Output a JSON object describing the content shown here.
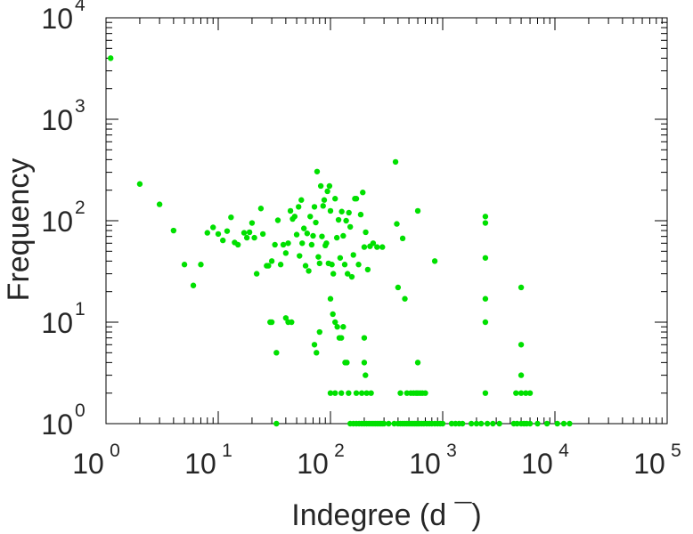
{
  "chart_data": {
    "type": "scatter",
    "xscale": "log",
    "yscale": "log",
    "xlim": [
      1,
      100000
    ],
    "ylim": [
      1,
      10000
    ],
    "xlabel": "Indegree (d ¯)",
    "ylabel": "Frequency",
    "grid": false,
    "marker_color": "#00e000",
    "x_ticks": [
      {
        "base": "10",
        "exp": "0",
        "value": 1
      },
      {
        "base": "10",
        "exp": "1",
        "value": 10
      },
      {
        "base": "10",
        "exp": "2",
        "value": 100
      },
      {
        "base": "10",
        "exp": "3",
        "value": 1000
      },
      {
        "base": "10",
        "exp": "4",
        "value": 10000
      },
      {
        "base": "10",
        "exp": "5",
        "value": 100000
      }
    ],
    "y_ticks": [
      {
        "base": "10",
        "exp": "0",
        "value": 1
      },
      {
        "base": "10",
        "exp": "1",
        "value": 10
      },
      {
        "base": "10",
        "exp": "2",
        "value": 100
      },
      {
        "base": "10",
        "exp": "3",
        "value": 1000
      },
      {
        "base": "10",
        "exp": "4",
        "value": 10000
      }
    ],
    "points": [
      [
        1.1,
        4000
      ],
      [
        2,
        230
      ],
      [
        3,
        145
      ],
      [
        4,
        80
      ],
      [
        5,
        37
      ],
      [
        6,
        23
      ],
      [
        7,
        37
      ],
      [
        8,
        76
      ],
      [
        9,
        86
      ],
      [
        10,
        74
      ],
      [
        11,
        64
      ],
      [
        12,
        79
      ],
      [
        13,
        108
      ],
      [
        14,
        61
      ],
      [
        15,
        58
      ],
      [
        17,
        76
      ],
      [
        18,
        68
      ],
      [
        19,
        77
      ],
      [
        20,
        95
      ],
      [
        21,
        68
      ],
      [
        22,
        30
      ],
      [
        24,
        132
      ],
      [
        25,
        74
      ],
      [
        27,
        36
      ],
      [
        28,
        36
      ],
      [
        29,
        10
      ],
      [
        30,
        40
      ],
      [
        32,
        58
      ],
      [
        34,
        101
      ],
      [
        36,
        37
      ],
      [
        38,
        58
      ],
      [
        40,
        48
      ],
      [
        42,
        60
      ],
      [
        44,
        125
      ],
      [
        46,
        104
      ],
      [
        48,
        110
      ],
      [
        50,
        73
      ],
      [
        52,
        137
      ],
      [
        53,
        45
      ],
      [
        55,
        160
      ],
      [
        56,
        60
      ],
      [
        58,
        84
      ],
      [
        60,
        36
      ],
      [
        62,
        75
      ],
      [
        64,
        32
      ],
      [
        66,
        110
      ],
      [
        68,
        58
      ],
      [
        70,
        71
      ],
      [
        72,
        137
      ],
      [
        74,
        96
      ],
      [
        76,
        305
      ],
      [
        78,
        44
      ],
      [
        80,
        38
      ],
      [
        82,
        220
      ],
      [
        84,
        70
      ],
      [
        86,
        140
      ],
      [
        88,
        160
      ],
      [
        90,
        57
      ],
      [
        92,
        60
      ],
      [
        94,
        195
      ],
      [
        96,
        38
      ],
      [
        98,
        220
      ],
      [
        100,
        125
      ],
      [
        103,
        37
      ],
      [
        106,
        30
      ],
      [
        110,
        165
      ],
      [
        114,
        68
      ],
      [
        118,
        102
      ],
      [
        122,
        43
      ],
      [
        126,
        123
      ],
      [
        130,
        71
      ],
      [
        134,
        37
      ],
      [
        138,
        100
      ],
      [
        142,
        30
      ],
      [
        146,
        120
      ],
      [
        150,
        87
      ],
      [
        155,
        28
      ],
      [
        160,
        46
      ],
      [
        165,
        165
      ],
      [
        170,
        165
      ],
      [
        178,
        37
      ],
      [
        186,
        115
      ],
      [
        194,
        190
      ],
      [
        200,
        55
      ],
      [
        206,
        77
      ],
      [
        215,
        33
      ],
      [
        225,
        56
      ],
      [
        240,
        60
      ],
      [
        260,
        55
      ],
      [
        290,
        55
      ],
      [
        380,
        380
      ],
      [
        390,
        93
      ],
      [
        400,
        22
      ],
      [
        440,
        67
      ],
      [
        460,
        17
      ],
      [
        600,
        125
      ],
      [
        850,
        40
      ],
      [
        100,
        17
      ],
      [
        105,
        12
      ],
      [
        110,
        10
      ],
      [
        115,
        9
      ],
      [
        120,
        7
      ],
      [
        125,
        7
      ],
      [
        130,
        9
      ],
      [
        135,
        4
      ],
      [
        40,
        11
      ],
      [
        42,
        10
      ],
      [
        45,
        10
      ],
      [
        30,
        10
      ],
      [
        33,
        5
      ],
      [
        72,
        6
      ],
      [
        75,
        5
      ],
      [
        80,
        8
      ],
      [
        140,
        4
      ],
      [
        200,
        7
      ],
      [
        200,
        4
      ],
      [
        205,
        3
      ],
      [
        600,
        4
      ],
      [
        2400,
        110
      ],
      [
        2400,
        95
      ],
      [
        2400,
        43
      ],
      [
        2400,
        17
      ],
      [
        2400,
        10
      ],
      [
        5000,
        22
      ],
      [
        5000,
        6
      ],
      [
        5000,
        3
      ],
      [
        100,
        2
      ],
      [
        110,
        2
      ],
      [
        125,
        2
      ],
      [
        145,
        2
      ],
      [
        170,
        2
      ],
      [
        190,
        2
      ],
      [
        210,
        2
      ],
      [
        230,
        2
      ],
      [
        420,
        2
      ],
      [
        480,
        2
      ],
      [
        520,
        2
      ],
      [
        550,
        2
      ],
      [
        580,
        2
      ],
      [
        600,
        2
      ],
      [
        630,
        2
      ],
      [
        660,
        2
      ],
      [
        700,
        2
      ],
      [
        2400,
        2
      ],
      [
        4500,
        2
      ],
      [
        5000,
        2
      ],
      [
        5500,
        2
      ],
      [
        6000,
        2
      ],
      [
        33,
        1
      ],
      [
        150,
        1
      ],
      [
        160,
        1
      ],
      [
        170,
        1
      ],
      [
        180,
        1
      ],
      [
        190,
        1
      ],
      [
        200,
        1
      ],
      [
        210,
        1
      ],
      [
        220,
        1
      ],
      [
        230,
        1
      ],
      [
        240,
        1
      ],
      [
        250,
        1
      ],
      [
        260,
        1
      ],
      [
        270,
        1
      ],
      [
        280,
        1
      ],
      [
        290,
        1
      ],
      [
        300,
        1
      ],
      [
        330,
        1
      ],
      [
        370,
        1
      ],
      [
        400,
        1
      ],
      [
        420,
        1
      ],
      [
        440,
        1
      ],
      [
        460,
        1
      ],
      [
        480,
        1
      ],
      [
        500,
        1
      ],
      [
        520,
        1
      ],
      [
        540,
        1
      ],
      [
        560,
        1
      ],
      [
        580,
        1
      ],
      [
        600,
        1
      ],
      [
        620,
        1
      ],
      [
        650,
        1
      ],
      [
        680,
        1
      ],
      [
        720,
        1
      ],
      [
        760,
        1
      ],
      [
        800,
        1
      ],
      [
        850,
        1
      ],
      [
        900,
        1
      ],
      [
        950,
        1
      ],
      [
        1000,
        1
      ],
      [
        1200,
        1
      ],
      [
        1300,
        1
      ],
      [
        1400,
        1
      ],
      [
        1500,
        1
      ],
      [
        1800,
        1
      ],
      [
        2000,
        1
      ],
      [
        2200,
        1
      ],
      [
        2500,
        1
      ],
      [
        2800,
        1
      ],
      [
        3200,
        1
      ],
      [
        4300,
        1
      ],
      [
        4600,
        1
      ],
      [
        5000,
        1
      ],
      [
        5300,
        1
      ],
      [
        5600,
        1
      ],
      [
        6000,
        1
      ],
      [
        7000,
        1
      ],
      [
        8500,
        1
      ],
      [
        10500,
        1
      ],
      [
        12000,
        1
      ],
      [
        13500,
        1
      ]
    ]
  }
}
